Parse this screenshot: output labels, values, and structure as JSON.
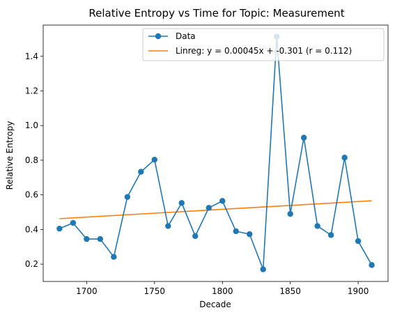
{
  "chart_data": {
    "type": "line",
    "title": "Relative Entropy vs Time for Topic: Measurement",
    "xlabel": "Decade",
    "ylabel": "Relative Entropy",
    "xlim": [
      1668,
      1922
    ],
    "ylim": [
      0.1,
      1.58
    ],
    "xticks": [
      1700,
      1750,
      1800,
      1850,
      1900
    ],
    "yticks": [
      0.2,
      0.4,
      0.6,
      0.8,
      1.0,
      1.2,
      1.4
    ],
    "x": [
      1680,
      1690,
      1700,
      1710,
      1720,
      1730,
      1740,
      1750,
      1760,
      1770,
      1780,
      1790,
      1800,
      1810,
      1820,
      1830,
      1840,
      1850,
      1860,
      1870,
      1880,
      1890,
      1900,
      1910
    ],
    "series": [
      {
        "name": "Data",
        "color": "#1f77b4",
        "marker": "circle",
        "values": [
          0.405,
          0.438,
          0.345,
          0.345,
          0.242,
          0.588,
          0.733,
          0.803,
          0.42,
          0.553,
          0.362,
          0.525,
          0.565,
          0.39,
          0.373,
          0.17,
          1.513,
          0.49,
          0.93,
          0.42,
          0.368,
          0.815,
          0.333,
          0.195
        ]
      },
      {
        "name": "Linreg: y = 0.00045x + -0.301 (r = 0.112)",
        "color": "#ff7f0e",
        "marker": "none",
        "x": [
          1680,
          1910
        ],
        "values": [
          0.4625,
          0.566
        ]
      }
    ],
    "grid": false,
    "legend": "top-right"
  }
}
